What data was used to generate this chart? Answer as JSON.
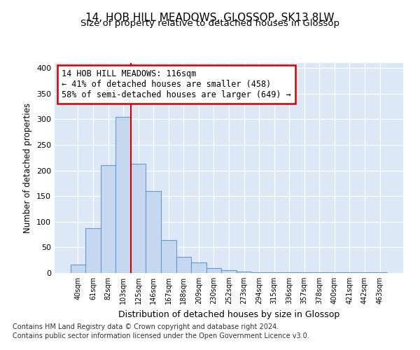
{
  "title1": "14, HOB HILL MEADOWS, GLOSSOP, SK13 8LW",
  "title2": "Size of property relative to detached houses in Glossop",
  "xlabel": "Distribution of detached houses by size in Glossop",
  "ylabel": "Number of detached properties",
  "categories": [
    "40sqm",
    "61sqm",
    "82sqm",
    "103sqm",
    "125sqm",
    "146sqm",
    "167sqm",
    "188sqm",
    "209sqm",
    "230sqm",
    "252sqm",
    "273sqm",
    "294sqm",
    "315sqm",
    "336sqm",
    "357sqm",
    "378sqm",
    "400sqm",
    "421sqm",
    "442sqm",
    "463sqm"
  ],
  "values": [
    16,
    88,
    210,
    305,
    213,
    160,
    64,
    31,
    20,
    10,
    5,
    3,
    2,
    2,
    2,
    2,
    2,
    1,
    1,
    1,
    1
  ],
  "bar_color": "#c5d8f0",
  "bar_edge_color": "#6699cc",
  "property_line_index": 4,
  "annotation_title": "14 HOB HILL MEADOWS: 116sqm",
  "annotation_line1": "← 41% of detached houses are smaller (458)",
  "annotation_line2": "58% of semi-detached houses are larger (649) →",
  "annotation_box_color": "#ffffff",
  "annotation_box_edge_color": "#cc0000",
  "property_line_color": "#cc0000",
  "background_color": "#dce8f5",
  "footer1": "Contains HM Land Registry data © Crown copyright and database right 2024.",
  "footer2": "Contains public sector information licensed under the Open Government Licence v3.0.",
  "ylim": [
    0,
    410
  ],
  "yticks": [
    0,
    50,
    100,
    150,
    200,
    250,
    300,
    350,
    400
  ],
  "title1_fontsize": 11,
  "title2_fontsize": 9.5,
  "ylabel_fontsize": 8.5,
  "xlabel_fontsize": 9,
  "tick_fontsize": 8,
  "ann_fontsize": 8.5,
  "footer_fontsize": 7
}
